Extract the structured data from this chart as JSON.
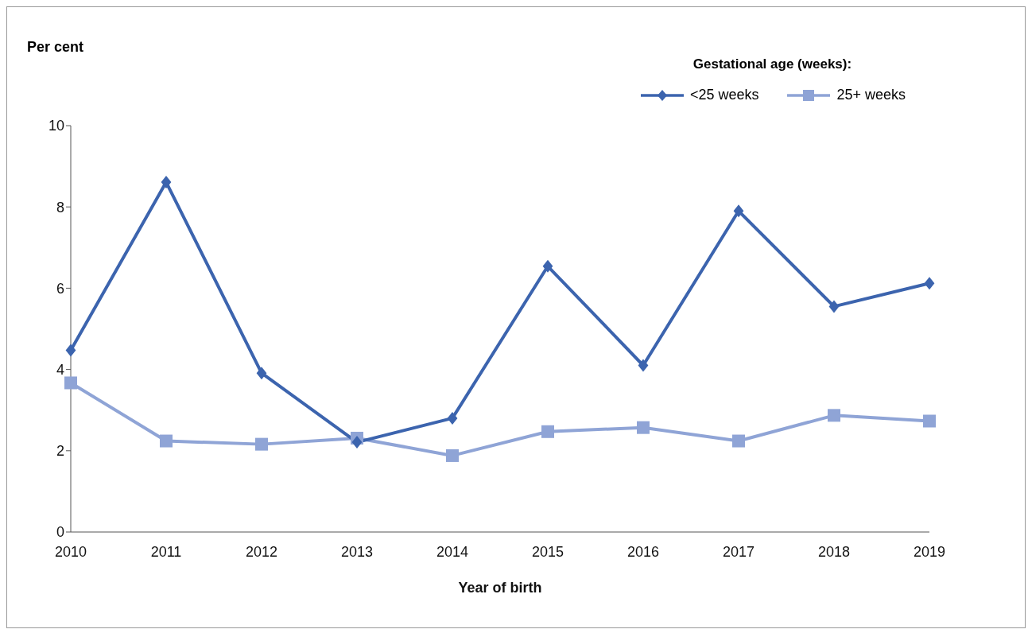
{
  "chart_data": {
    "type": "line",
    "ylabel": "Per cent",
    "xlabel": "Year of birth",
    "legend_title": "Gestational age (weeks):",
    "categories": [
      "2010",
      "2011",
      "2012",
      "2013",
      "2014",
      "2015",
      "2016",
      "2017",
      "2018",
      "2019"
    ],
    "series": [
      {
        "name": "<25 weeks",
        "color": "#3c64ae",
        "marker": "diamond",
        "values": [
          4.47,
          8.61,
          3.91,
          2.21,
          2.8,
          6.54,
          4.1,
          7.9,
          5.55,
          6.12
        ]
      },
      {
        "name": "25+ weeks",
        "color": "#8fa4d6",
        "marker": "square",
        "values": [
          3.67,
          2.24,
          2.16,
          2.31,
          1.88,
          2.47,
          2.57,
          2.24,
          2.87,
          2.73
        ]
      }
    ],
    "ylim": [
      0,
      10
    ],
    "yticks": [
      0,
      2,
      4,
      6,
      8,
      10
    ],
    "grid": false,
    "legend": "top right",
    "line_style": "solid"
  }
}
